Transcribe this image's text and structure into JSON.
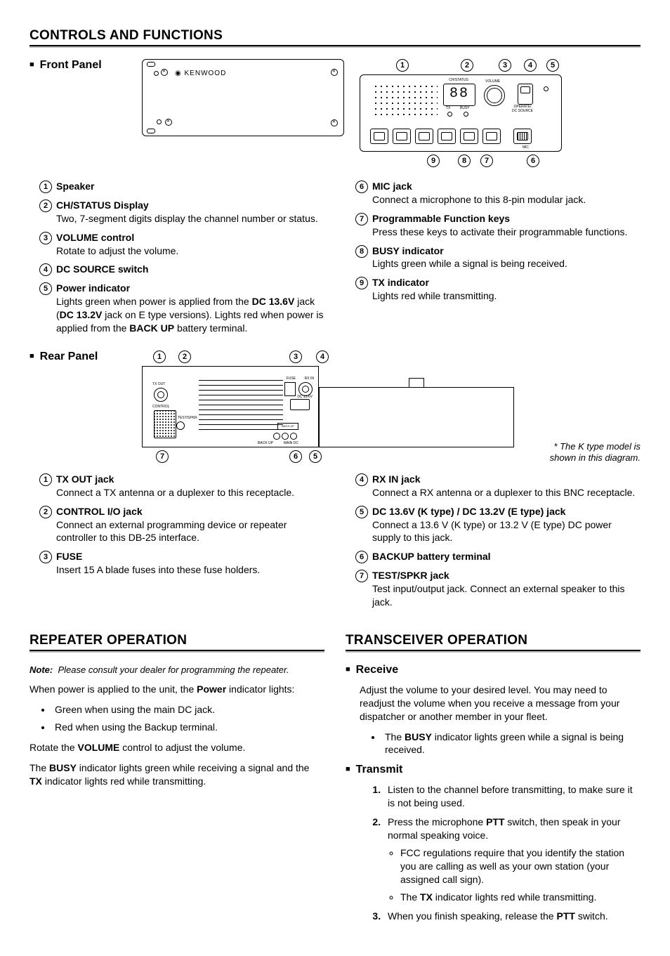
{
  "sections": {
    "controls_title": "CONTROLS AND FUNCTIONS",
    "repeater_title": "REPEATER OPERATION",
    "transceiver_title": "TRANSCEIVER OPERATION"
  },
  "front": {
    "heading": "Front Panel",
    "logo": "KENWOOD",
    "display_value": "88",
    "display_label": "CH/STATUS",
    "vol_label": "VOLUME",
    "tx_label": "TX",
    "busy_label": "BUSY",
    "mic_label": "MIC",
    "dc_label": "OPERATE/\nDC SOURCE",
    "callouts_top": [
      "1",
      "2",
      "3",
      "4",
      "5"
    ],
    "callouts_bottom": [
      "9",
      "8",
      "7",
      "6"
    ],
    "items_left": [
      {
        "n": "1",
        "label": "Speaker",
        "desc": ""
      },
      {
        "n": "2",
        "label": "CH/STATUS Display",
        "desc": "Two, 7-segment digits display the channel number or status."
      },
      {
        "n": "3",
        "label": "VOLUME control",
        "desc": "Rotate to adjust the volume."
      },
      {
        "n": "4",
        "label": "DC SOURCE switch",
        "desc": ""
      },
      {
        "n": "5",
        "label": "Power indicator",
        "desc": "Lights green when power is applied from the <b>DC 13.6V</b> jack (<b>DC 13.2V</b> jack on E type versions). Lights red when power is applied from the <b>BACK UP</b> battery terminal."
      }
    ],
    "items_right": [
      {
        "n": "6",
        "label": "MIC jack",
        "desc": "Connect a microphone to this 8-pin modular jack."
      },
      {
        "n": "7",
        "label": "Programmable Function keys",
        "desc": "Press these keys to activate their programmable functions."
      },
      {
        "n": "8",
        "label": "BUSY indicator",
        "desc": "Lights green while a signal is being received."
      },
      {
        "n": "9",
        "label": "TX indicator",
        "desc": "Lights red while transmitting."
      }
    ]
  },
  "rear": {
    "heading": "Rear Panel",
    "note": "* The K type model is shown in this diagram.",
    "labels": {
      "txout": "TX OUT",
      "control": "CONTROL",
      "fuse": "FUSE",
      "rxin": "RX IN",
      "dc": "DC 13.6V",
      "backup": "BACK UP",
      "maindc": "MAIN DC",
      "test": "TEST/SPKR"
    },
    "callouts_top": [
      "1",
      "2",
      "3",
      "4"
    ],
    "callouts_bottom": [
      "7",
      "6",
      "5"
    ],
    "items_left": [
      {
        "n": "1",
        "label": "TX OUT jack",
        "desc": "Connect a TX antenna or a duplexer to this receptacle."
      },
      {
        "n": "2",
        "label": "CONTROL I/O jack",
        "desc": "Connect an external programming device or repeater controller to this DB-25 interface."
      },
      {
        "n": "3",
        "label": "FUSE",
        "desc": "Insert 15 A blade fuses into these fuse holders."
      }
    ],
    "items_right": [
      {
        "n": "4",
        "label": "RX IN jack",
        "desc": "Connect a RX antenna or a duplexer to this BNC receptacle."
      },
      {
        "n": "5",
        "label": "DC 13.6V (K type) / DC 13.2V (E type) jack",
        "desc": "Connect a 13.6 V (K type) or 13.2 V (E type) DC power supply to this jack."
      },
      {
        "n": "6",
        "label": "BACKUP battery terminal",
        "desc": ""
      },
      {
        "n": "7",
        "label": "TEST/SPKR jack",
        "desc": "Test input/output jack.  Connect an external speaker to this jack."
      }
    ]
  },
  "repeater": {
    "note_label": "Note:",
    "note_text": "Please consult your dealer for programming the repeater.",
    "p1_pre": "When power is applied to the unit, the ",
    "p1_bold": "Power",
    "p1_post": " indicator lights:",
    "bullets": [
      "Green when using the main DC jack.",
      "Red when using the Backup terminal."
    ],
    "p2": "Rotate the <b>VOLUME</b> control to adjust the volume.",
    "p3": "The <b>BUSY</b> indicator lights green while receiving a signal and the <b>TX</b> indicator lights red while transmitting."
  },
  "transceiver": {
    "receive_heading": "Receive",
    "receive_p": "Adjust the volume to your desired level.  You may need to readjust the volume when you receive a message from your dispatcher or another member in your fleet.",
    "receive_bullet": "The <b>BUSY</b> indicator lights green while a signal is being received.",
    "transmit_heading": "Transmit",
    "steps": [
      {
        "text": "Listen to the channel before transmitting, to make sure it is not being used."
      },
      {
        "text": "Press the microphone <b>PTT</b> switch, then speak in your normal speaking voice.",
        "sub": [
          "FCC regulations require that you identify the station you are calling as well as your own station (your assigned call sign).",
          "The <b>TX</b> indicator lights red while transmitting."
        ]
      },
      {
        "text": "When you finish speaking, release the <b>PTT</b> switch."
      }
    ]
  }
}
